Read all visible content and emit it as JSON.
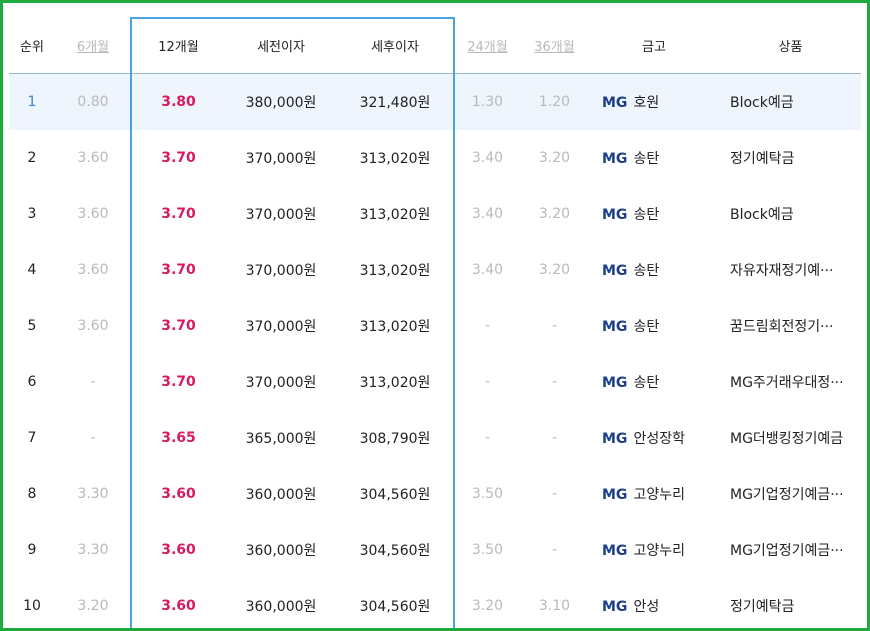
{
  "colors": {
    "frame": "#1faa3f",
    "highlight": "#4aa3e0",
    "rate12": "#d81b60",
    "rank1": "#3b86c8",
    "muted": "#b9b9b9",
    "brand_mg": "#1c3e8a",
    "top_row_bg": "#eef5fd"
  },
  "header": {
    "rank": "순위",
    "m6": "6개월",
    "m12": "12개월",
    "pretax": "세전이자",
    "posttax": "세후이자",
    "m24": "24개월",
    "m36": "36개월",
    "bank": "금고",
    "product": "상품"
  },
  "brand_label": "MG",
  "rows": [
    {
      "rank": "1",
      "m6": "0.80",
      "m12": "3.80",
      "pretax": "380,000원",
      "posttax": "321,480원",
      "m24": "1.30",
      "m36": "1.20",
      "bank": "호원",
      "product": "Block예금"
    },
    {
      "rank": "2",
      "m6": "3.60",
      "m12": "3.70",
      "pretax": "370,000원",
      "posttax": "313,020원",
      "m24": "3.40",
      "m36": "3.20",
      "bank": "송탄",
      "product": "정기예탁금"
    },
    {
      "rank": "3",
      "m6": "3.60",
      "m12": "3.70",
      "pretax": "370,000원",
      "posttax": "313,020원",
      "m24": "3.40",
      "m36": "3.20",
      "bank": "송탄",
      "product": "Block예금"
    },
    {
      "rank": "4",
      "m6": "3.60",
      "m12": "3.70",
      "pretax": "370,000원",
      "posttax": "313,020원",
      "m24": "3.40",
      "m36": "3.20",
      "bank": "송탄",
      "product": "자유자재정기예···"
    },
    {
      "rank": "5",
      "m6": "3.60",
      "m12": "3.70",
      "pretax": "370,000원",
      "posttax": "313,020원",
      "m24": "-",
      "m36": "-",
      "bank": "송탄",
      "product": "꿈드림회전정기···"
    },
    {
      "rank": "6",
      "m6": "-",
      "m12": "3.70",
      "pretax": "370,000원",
      "posttax": "313,020원",
      "m24": "-",
      "m36": "-",
      "bank": "송탄",
      "product": "MG주거래우대정···"
    },
    {
      "rank": "7",
      "m6": "-",
      "m12": "3.65",
      "pretax": "365,000원",
      "posttax": "308,790원",
      "m24": "-",
      "m36": "-",
      "bank": "안성장학",
      "product": "MG더뱅킹정기예금"
    },
    {
      "rank": "8",
      "m6": "3.30",
      "m12": "3.60",
      "pretax": "360,000원",
      "posttax": "304,560원",
      "m24": "3.50",
      "m36": "-",
      "bank": "고양누리",
      "product": "MG기업정기예금···"
    },
    {
      "rank": "9",
      "m6": "3.30",
      "m12": "3.60",
      "pretax": "360,000원",
      "posttax": "304,560원",
      "m24": "3.50",
      "m36": "-",
      "bank": "고양누리",
      "product": "MG기업정기예금···"
    },
    {
      "rank": "10",
      "m6": "3.20",
      "m12": "3.60",
      "pretax": "360,000원",
      "posttax": "304,560원",
      "m24": "3.20",
      "m36": "3.10",
      "bank": "안성",
      "product": "정기예탁금"
    }
  ]
}
